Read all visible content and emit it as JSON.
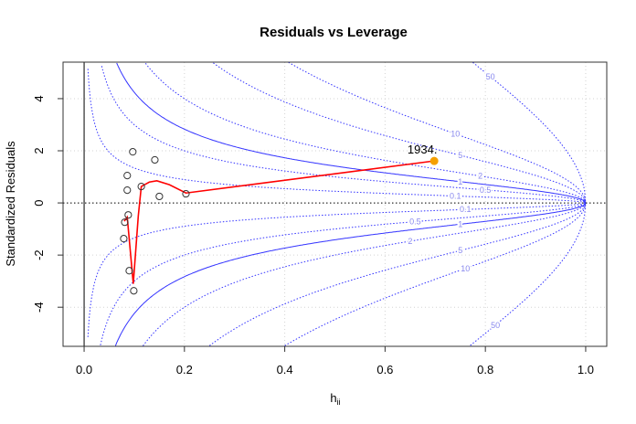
{
  "chart_data": {
    "type": "scatter",
    "title": "Residuals vs Leverage",
    "xlabel": "h",
    "xlabel_subscript": "ii",
    "ylabel": "Standardized Residuals",
    "xlim": [
      -0.042,
      1.042
    ],
    "ylim": [
      -5.5,
      5.4
    ],
    "xticks": [
      0.0,
      0.2,
      0.4,
      0.6,
      0.8,
      1.0
    ],
    "xtick_labels": [
      "0.0",
      "0.2",
      "0.4",
      "0.6",
      "0.8",
      "1.0"
    ],
    "yticks": [
      -4,
      -2,
      0,
      2,
      4
    ],
    "ytick_labels": [
      "-4",
      "-2",
      "0",
      "2",
      "4"
    ],
    "grid": true,
    "points": [
      {
        "x": 0.097,
        "y": 1.96
      },
      {
        "x": 0.141,
        "y": 1.65
      },
      {
        "x": 0.086,
        "y": 1.05
      },
      {
        "x": 0.086,
        "y": 0.49
      },
      {
        "x": 0.114,
        "y": 0.63
      },
      {
        "x": 0.15,
        "y": 0.25
      },
      {
        "x": 0.203,
        "y": 0.35
      },
      {
        "x": 0.088,
        "y": -0.46
      },
      {
        "x": 0.081,
        "y": -0.74
      },
      {
        "x": 0.079,
        "y": -1.37
      },
      {
        "x": 0.09,
        "y": -2.6
      },
      {
        "x": 0.099,
        "y": -3.37
      }
    ],
    "highlight": {
      "x": 0.698,
      "y": 1.61,
      "label": "1934.",
      "color": "#f5a000"
    },
    "smooth_line": {
      "color": "#ff0000",
      "x": [
        0.08,
        0.086,
        0.098,
        0.108,
        0.114,
        0.13,
        0.145,
        0.17,
        0.203,
        0.698
      ],
      "y": [
        -0.7,
        -0.55,
        -3.1,
        -0.5,
        0.63,
        0.8,
        0.85,
        0.7,
        0.38,
        1.61
      ]
    },
    "cooks_contours": {
      "color": "#3333ff",
      "n_params": 2,
      "levels": [
        0.1,
        0.5,
        1,
        2,
        5,
        10,
        50
      ],
      "level_labels": [
        "0.1",
        "0.5",
        "1",
        "2",
        "5",
        "10",
        "50"
      ],
      "solid_levels": [
        1
      ]
    }
  }
}
